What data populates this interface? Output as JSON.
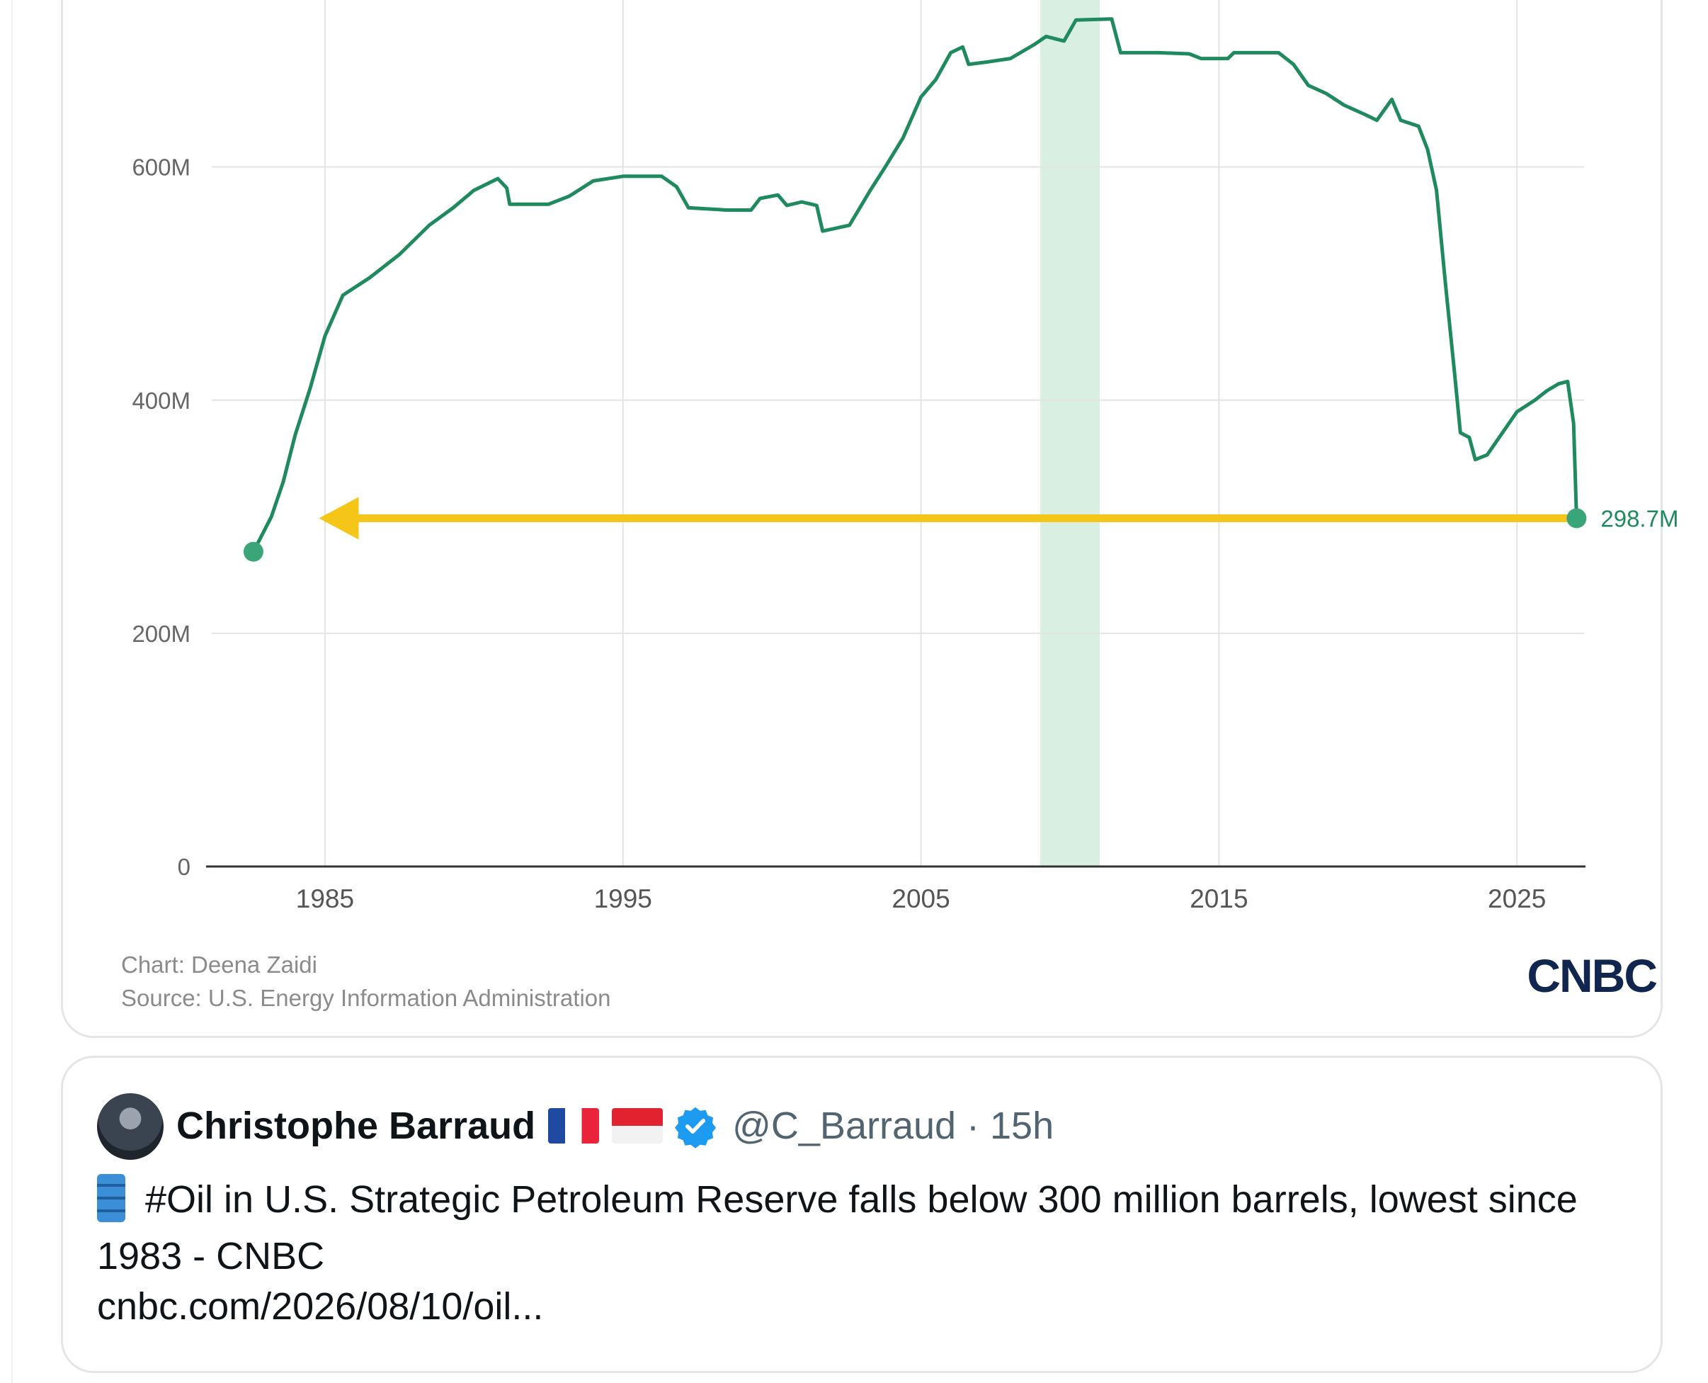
{
  "chart_data": {
    "type": "line",
    "title": "",
    "xlabel": "",
    "ylabel": "",
    "y_ticks": [
      "0",
      "200M",
      "400M",
      "600M"
    ],
    "y_tick_values": [
      0,
      200,
      400,
      600
    ],
    "x_ticks": [
      "1985",
      "1995",
      "2005",
      "2015",
      "2025"
    ],
    "x_tick_values": [
      1985,
      1995,
      2005,
      2015,
      2025
    ],
    "xlim": [
      1981.2,
      2027.3
    ],
    "ylim": [
      0,
      790
    ],
    "grid": true,
    "highlight_band": [
      2009.0,
      2011.0
    ],
    "end_label": "298.7M",
    "colors": {
      "line": "#1e8a5e",
      "band": "#d8efe2",
      "arrow": "#f5c518"
    },
    "series": [
      {
        "values_unit": "millions of barrels",
        "points": [
          [
            1982.6,
            270
          ],
          [
            1983.2,
            300
          ],
          [
            1983.6,
            330
          ],
          [
            1984.0,
            370
          ],
          [
            1984.5,
            410
          ],
          [
            1985.0,
            455
          ],
          [
            1985.6,
            490
          ],
          [
            1986.5,
            505
          ],
          [
            1987.5,
            525
          ],
          [
            1988.5,
            550
          ],
          [
            1989.3,
            565
          ],
          [
            1990.0,
            580
          ],
          [
            1990.8,
            590
          ],
          [
            1991.1,
            582
          ],
          [
            1991.2,
            568
          ],
          [
            1992.5,
            568
          ],
          [
            1993.2,
            575
          ],
          [
            1994.0,
            588
          ],
          [
            1995.0,
            592
          ],
          [
            1996.3,
            592
          ],
          [
            1996.8,
            583
          ],
          [
            1997.2,
            565
          ],
          [
            1998.5,
            563
          ],
          [
            1999.3,
            563
          ],
          [
            1999.6,
            573
          ],
          [
            2000.2,
            576
          ],
          [
            2000.5,
            567
          ],
          [
            2001.0,
            570
          ],
          [
            2001.5,
            567
          ],
          [
            2001.7,
            545
          ],
          [
            2002.6,
            550
          ],
          [
            2003.3,
            580
          ],
          [
            2003.8,
            600
          ],
          [
            2004.4,
            625
          ],
          [
            2005.0,
            660
          ],
          [
            2005.5,
            675
          ],
          [
            2006.0,
            698
          ],
          [
            2006.4,
            703
          ],
          [
            2006.6,
            688
          ],
          [
            2007.2,
            690
          ],
          [
            2008.0,
            693
          ],
          [
            2008.8,
            705
          ],
          [
            2009.2,
            712
          ],
          [
            2009.8,
            708
          ],
          [
            2010.2,
            726
          ],
          [
            2011.4,
            727
          ],
          [
            2011.7,
            698
          ],
          [
            2013.0,
            698
          ],
          [
            2014.0,
            697
          ],
          [
            2014.4,
            693
          ],
          [
            2015.3,
            693
          ],
          [
            2015.5,
            698
          ],
          [
            2017.0,
            698
          ],
          [
            2017.5,
            688
          ],
          [
            2018.0,
            670
          ],
          [
            2018.6,
            663
          ],
          [
            2019.2,
            653
          ],
          [
            2019.9,
            645
          ],
          [
            2020.3,
            640
          ],
          [
            2020.8,
            658
          ],
          [
            2021.1,
            640
          ],
          [
            2021.7,
            635
          ],
          [
            2022.0,
            615
          ],
          [
            2022.3,
            580
          ],
          [
            2022.6,
            500
          ],
          [
            2022.9,
            425
          ],
          [
            2023.1,
            372
          ],
          [
            2023.4,
            368
          ],
          [
            2023.6,
            349
          ],
          [
            2024.0,
            353
          ],
          [
            2025.0,
            390
          ],
          [
            2025.6,
            400
          ],
          [
            2026.0,
            408
          ],
          [
            2026.4,
            414
          ],
          [
            2026.7,
            416
          ],
          [
            2026.9,
            380
          ],
          [
            2027.0,
            298.7
          ]
        ]
      }
    ]
  },
  "chart_credits": {
    "chart": "Chart: Deena Zaidi",
    "source": "Source: U.S. Energy Information Administration",
    "logo": "CNBC"
  },
  "quote_tweet": {
    "name": "Christophe Barraud",
    "flags": [
      "flag-france",
      "flag-indonesia"
    ],
    "verified": true,
    "handle": "@C_Barraud · 15h",
    "text": "#Oil in U.S. Strategic Petroleum Reserve falls below 300 million barrels, lowest since 1983 - CNBC",
    "link": "cnbc.com/2026/08/10/oil..."
  }
}
